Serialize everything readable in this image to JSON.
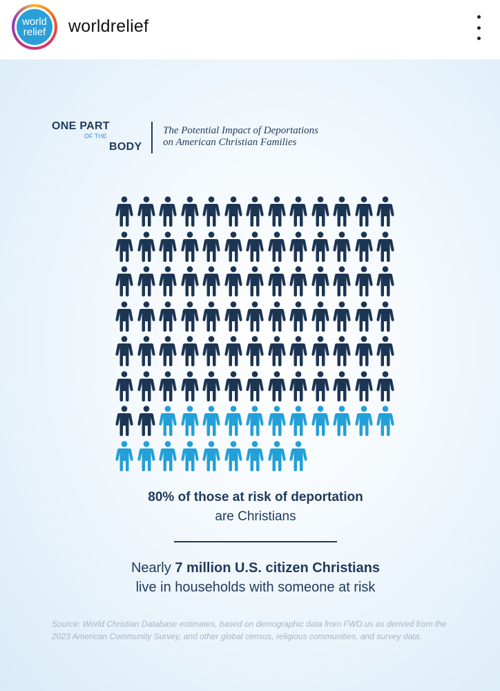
{
  "header": {
    "avatar_text_line1": "world",
    "avatar_text_line2": "relief",
    "username": "worldrelief",
    "more_icon": "more-vertical-icon"
  },
  "post": {
    "brand": {
      "line1": "ONE PART",
      "line2": "OF THE",
      "line3": "BODY"
    },
    "subtitle_line1": "The Potential Impact of Deportations",
    "subtitle_line2": "on American Christian Families",
    "stat1_bold": "80% of those at risk of deportation",
    "stat1_normal": "are Christians",
    "stat2_pre": "Nearly ",
    "stat2_bold": "7 million U.S. citizen Christians",
    "stat2_line2": "live in households with someone at risk",
    "source": "Source: World Christian Database estimates, based on demographic data from FWD.us as derived from the 2023 American Community Survey, and other global census, religious communities, and survey data."
  },
  "icon_grid": {
    "total": 100,
    "columns": 13,
    "dark_count": 80,
    "light_count": 20,
    "dark_color": "#1c3553",
    "light_color": "#23a0d8",
    "icon": "person-icon"
  },
  "colors": {
    "navy": "#1f3a5b",
    "accent_blue": "#2a9fd8"
  }
}
